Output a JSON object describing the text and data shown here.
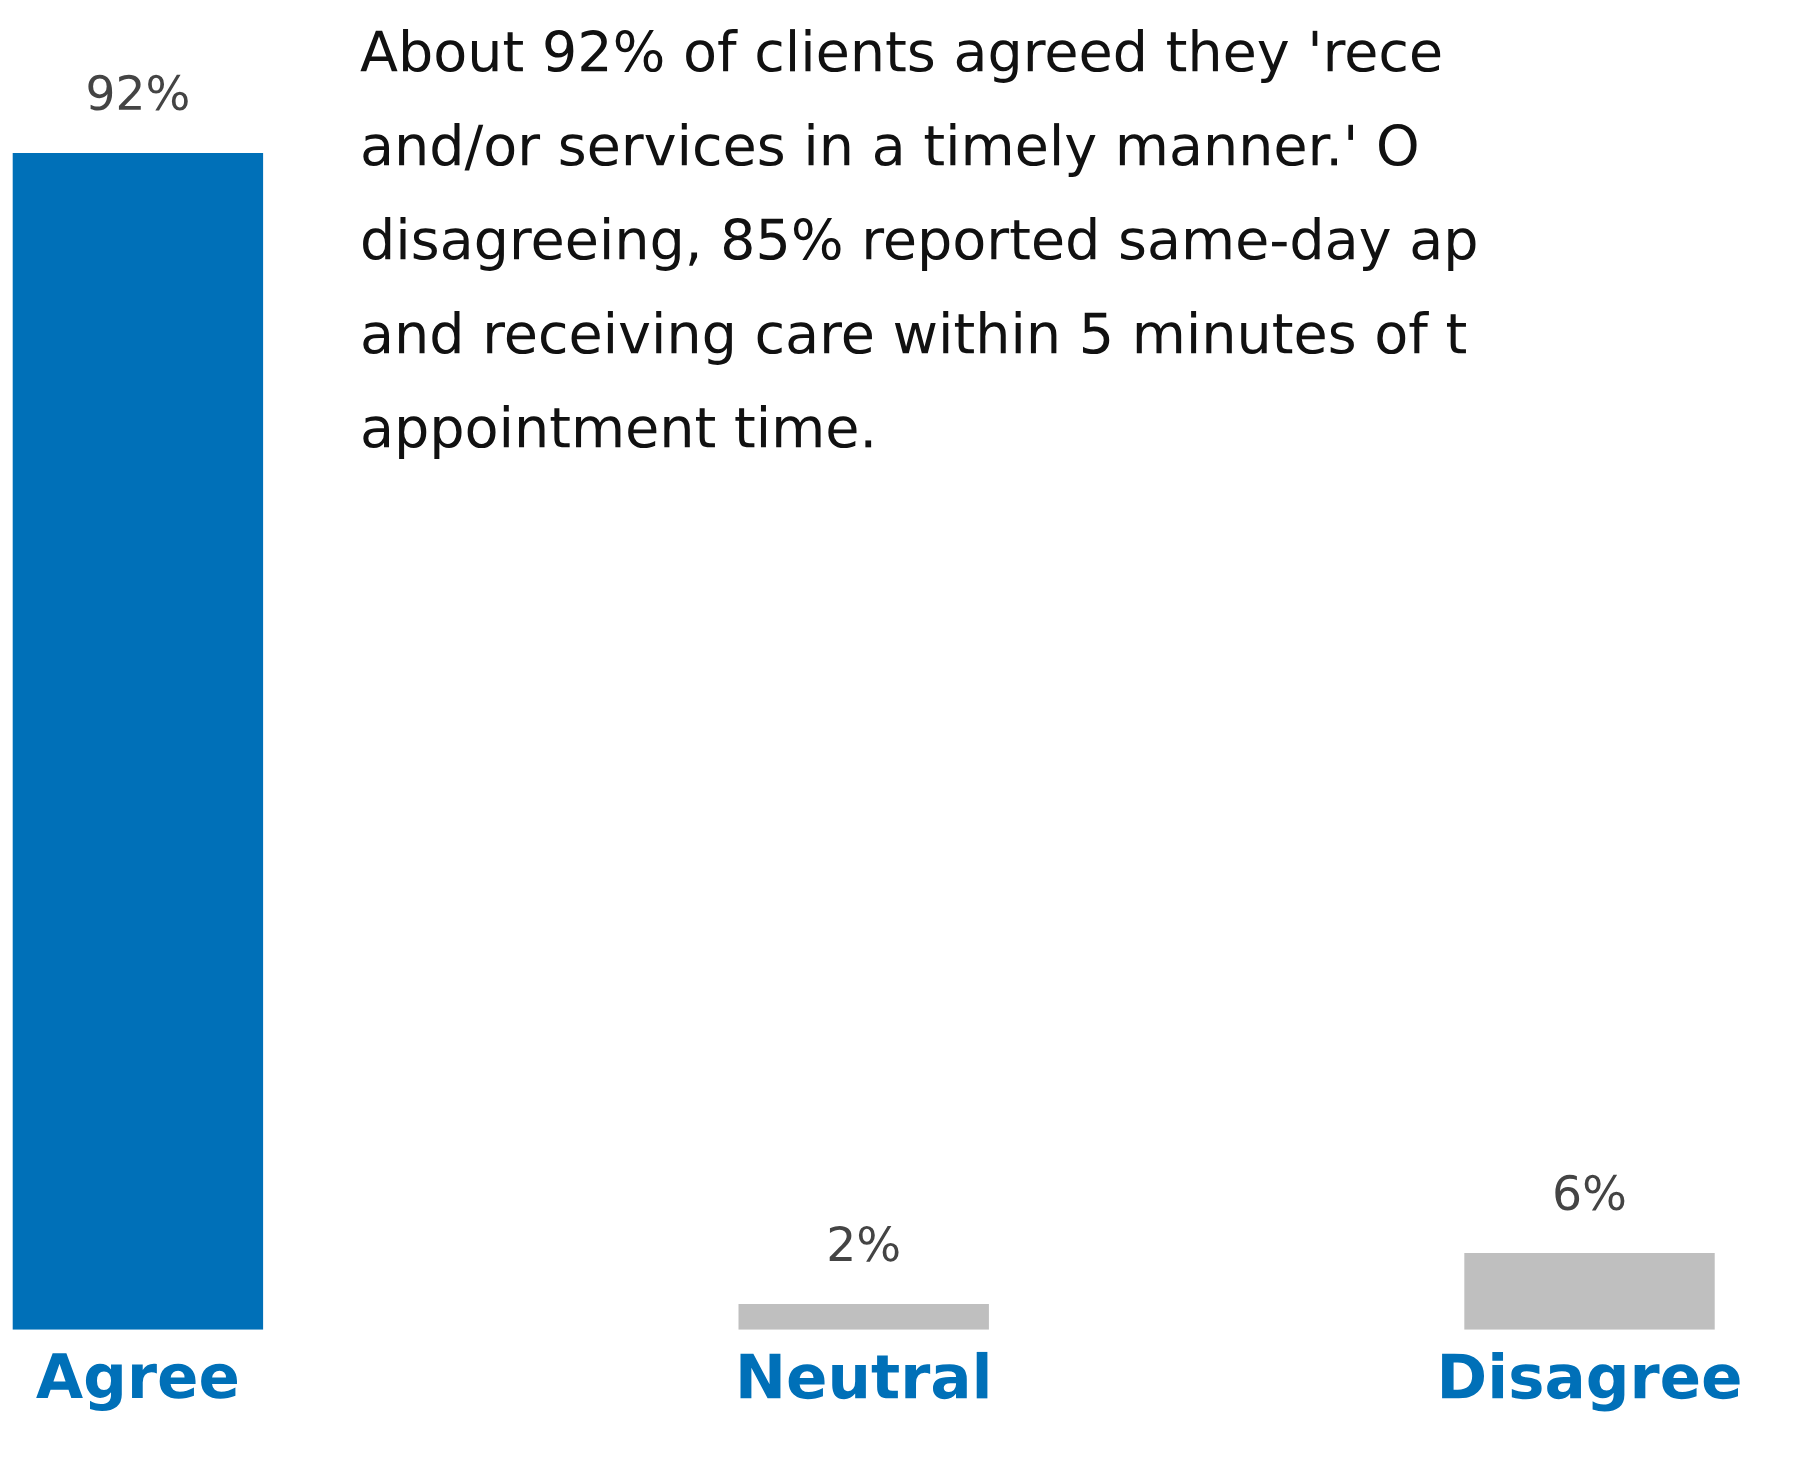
{
  "chart_data": {
    "type": "bar",
    "categories": [
      "Agree",
      "Neutral",
      "Disagree"
    ],
    "values": [
      92,
      2,
      6
    ],
    "colors": [
      "#0070b8",
      "#bfbfbf",
      "#bfbfbf"
    ],
    "value_labels": [
      "92%",
      "2%",
      "6%"
    ],
    "grid": false,
    "legend": false,
    "annotations": [
      "About 92% of clients agreed they 'rece",
      "and/or services in a timely manner.' O",
      "disagreeing, 85% reported same-day ap",
      "and receiving care within 5 minutes of t",
      "appointment time."
    ]
  }
}
